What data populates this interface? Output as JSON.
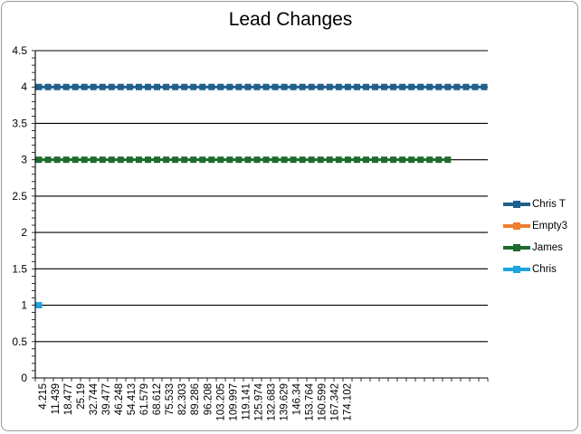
{
  "chart_data": {
    "type": "line",
    "title": "Lead Changes",
    "xlabel": "",
    "ylabel": "",
    "ylim": [
      0,
      4.5
    ],
    "y_ticks": [
      "0",
      "0.5",
      "1",
      "1.5",
      "2",
      "2.5",
      "3",
      "3.5",
      "4",
      "4.5"
    ],
    "x_tick_labels": [
      "4.215",
      "11.439",
      "18.477",
      "25.19",
      "32.744",
      "39.477",
      "46.248",
      "54.413",
      "61.579",
      "68.612",
      "75.533",
      "82.303",
      "89.286",
      "96.208",
      "103.205",
      "109.997",
      "119.141",
      "125.974",
      "132.683",
      "139.629",
      "146.34",
      "153.764",
      "160.599",
      "167.342",
      "174.102"
    ],
    "grid": true,
    "legend_position": "right",
    "series": [
      {
        "name": "Chris T",
        "color": "#1f5f8b",
        "marker": "square",
        "start_index": 0,
        "point_count": 50,
        "value": 4
      },
      {
        "name": "Empty3",
        "color": "#ed7d31",
        "marker": "square",
        "start_index": 0,
        "point_count": 0,
        "value": null
      },
      {
        "name": "James",
        "color": "#1e6b2e",
        "marker": "square",
        "start_index": 0,
        "point_count": 46,
        "value": 3
      },
      {
        "name": "Chris",
        "color": "#1ea5dc",
        "marker": "square",
        "start_index": 0,
        "point_count": 1,
        "value": 1
      }
    ]
  }
}
